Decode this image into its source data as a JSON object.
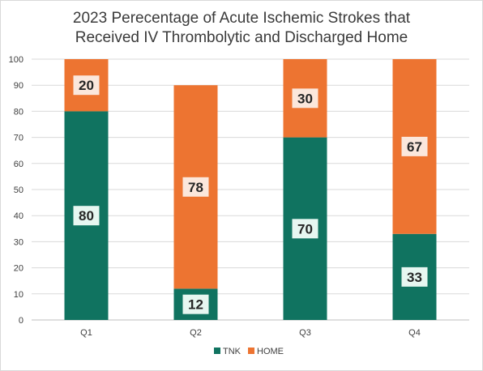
{
  "chart_data": {
    "type": "bar",
    "stacked": true,
    "title_lines": [
      "2023 Perecentage of Acute Ischemic Strokes that",
      "Received IV Thrombolytic and Discharged Home"
    ],
    "categories": [
      "Q1",
      "Q2",
      "Q3",
      "Q4"
    ],
    "series": [
      {
        "name": "TNK",
        "color": "#107360",
        "label_bg": "#e7f7f1",
        "values": [
          80,
          12,
          70,
          33
        ]
      },
      {
        "name": "HOME",
        "color": "#ed7431",
        "label_bg": "#fbe7dc",
        "values": [
          20,
          78,
          30,
          67
        ]
      }
    ],
    "ylim": [
      0,
      100
    ],
    "yticks": [
      "0",
      "10",
      "20",
      "30",
      "40",
      "50",
      "60",
      "70",
      "80",
      "90",
      "100"
    ],
    "xlabel": "",
    "ylabel": "",
    "grid": true,
    "legend_position": "bottom"
  }
}
